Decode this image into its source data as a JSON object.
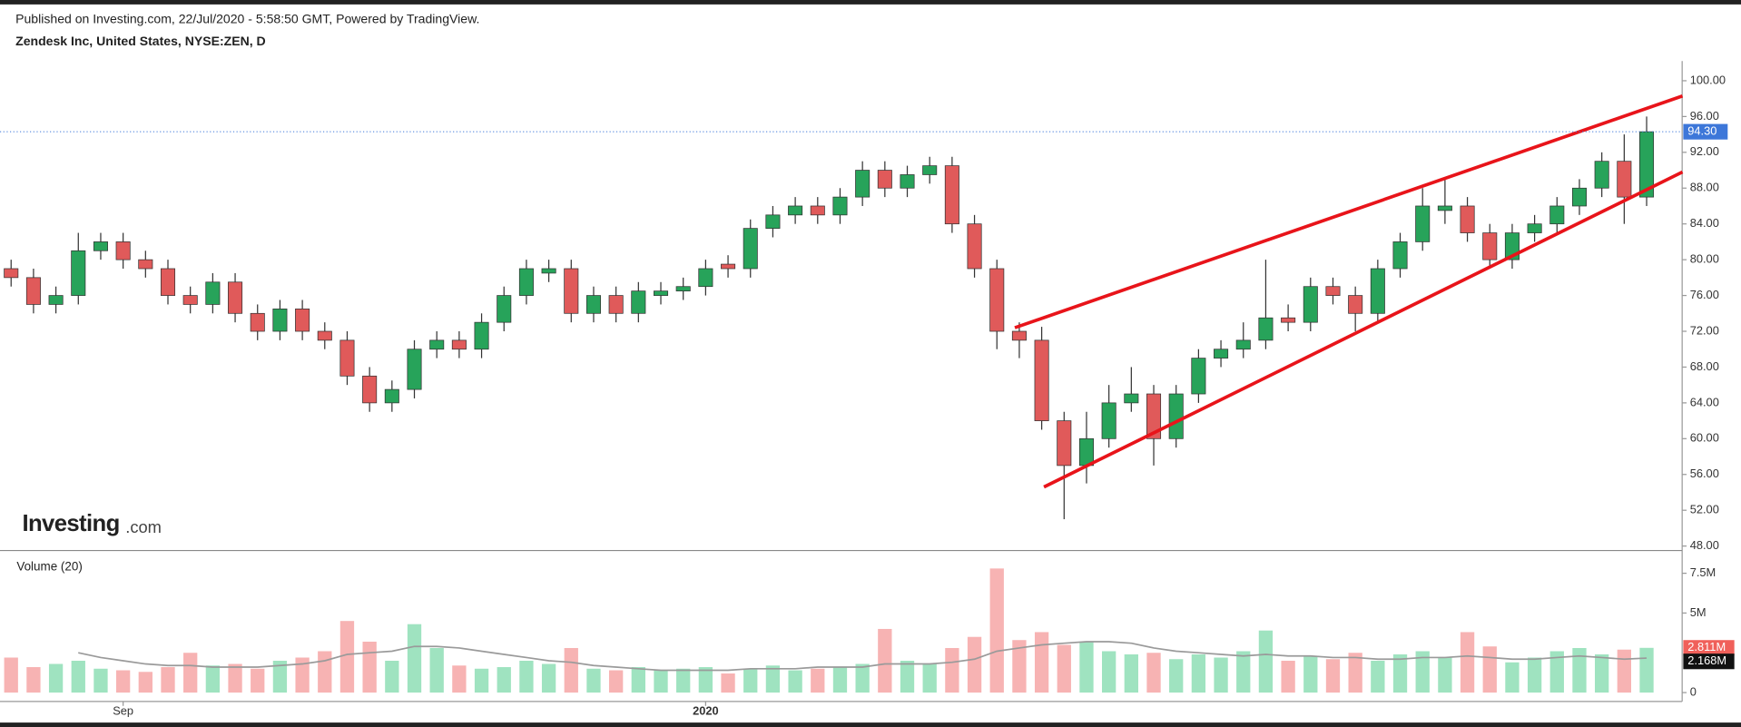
{
  "chart_data": {
    "type": "candlestick",
    "subtitle": "Published on Investing.com, 22/Jul/2020 - 5:58:50 GMT, Powered by TradingView.",
    "title": "Zendesk Inc, United States, NYSE:ZEN, D",
    "watermark": [
      "Investing",
      ".com"
    ],
    "categories": [
      null,
      null,
      null,
      null,
      null,
      "Sep",
      null,
      null,
      null,
      null,
      null,
      null,
      null,
      null,
      null,
      null,
      null,
      null,
      null,
      null,
      null,
      null,
      null,
      null,
      null,
      null,
      null,
      null,
      null,
      null,
      null,
      "2020",
      null,
      null,
      null,
      null,
      null,
      null,
      null,
      null,
      null,
      null,
      null,
      null,
      null,
      null,
      null,
      null,
      null,
      null,
      null,
      null,
      null,
      null,
      null,
      null,
      null,
      null,
      null,
      null,
      null,
      null,
      null,
      null,
      null,
      null,
      null,
      null,
      null,
      null,
      null,
      null,
      null,
      null
    ],
    "open": [
      79,
      78,
      75,
      76,
      81,
      82,
      80,
      79,
      76,
      75,
      77.5,
      74,
      72,
      74.5,
      72,
      71,
      67,
      64,
      65.5,
      70,
      71,
      70,
      73,
      76,
      78.5,
      79,
      74,
      76,
      74,
      76,
      76.5,
      77,
      79.5,
      79,
      83.5,
      85,
      86,
      85,
      87,
      90,
      88,
      89.5,
      90.5,
      84,
      79,
      72,
      71,
      62,
      57,
      60,
      64,
      65,
      60,
      65,
      69,
      70,
      71,
      73.5,
      73,
      77,
      76,
      74,
      79,
      82,
      85.5,
      86,
      83,
      80,
      83,
      84,
      86,
      88,
      91,
      87
    ],
    "high": [
      80,
      79,
      77,
      83,
      83,
      83,
      81,
      80,
      77,
      78.5,
      78.5,
      75,
      75.5,
      75.5,
      73,
      72,
      68,
      66.5,
      71,
      72,
      72,
      74,
      77,
      80,
      80,
      80,
      77,
      77,
      77.5,
      77.5,
      78,
      80,
      80.5,
      84.5,
      86,
      87,
      87,
      88,
      91,
      91,
      90.5,
      91.5,
      91.5,
      85,
      80,
      73,
      72.5,
      63,
      63,
      66,
      68,
      66,
      66,
      70,
      71,
      73,
      80,
      75,
      78,
      78,
      77,
      80,
      83,
      88,
      89,
      87,
      84,
      84,
      85,
      87,
      89,
      92,
      94,
      96
    ],
    "low": [
      77,
      74,
      74,
      75,
      80,
      79,
      78,
      75,
      74,
      74,
      73,
      71,
      71,
      71,
      70,
      66,
      63,
      63,
      64.5,
      69,
      69,
      69,
      72,
      75,
      77.5,
      73,
      73,
      73,
      73,
      75,
      75.5,
      76,
      78,
      78,
      82.5,
      84,
      84,
      84,
      86,
      87,
      87,
      88.5,
      83,
      78,
      70,
      69,
      61,
      51,
      55,
      59,
      63,
      57,
      59,
      64,
      68,
      69,
      70,
      72,
      72,
      75,
      72,
      73,
      78,
      81,
      84,
      82,
      79,
      79,
      82,
      83,
      85,
      87,
      84,
      86
    ],
    "close": [
      78,
      75,
      76,
      81,
      82,
      80,
      79,
      76,
      75,
      77.5,
      74,
      72,
      74.5,
      72,
      71,
      67,
      64,
      65.5,
      70,
      71,
      70,
      73,
      76,
      79,
      79,
      74,
      76,
      74,
      76.5,
      76.5,
      77,
      79,
      79,
      83.5,
      85,
      86,
      85,
      87,
      90,
      88,
      89.5,
      90.5,
      84,
      79,
      72,
      71,
      62,
      57,
      60,
      64,
      65,
      60,
      65,
      69,
      70,
      71,
      73.5,
      73,
      77,
      76,
      74,
      79,
      82,
      86,
      86,
      83,
      80,
      83,
      84,
      86,
      88,
      91,
      87,
      94.3
    ],
    "last_close_label": "94.30",
    "up_color": "#27a35a",
    "down_color": "#e05a5a",
    "last_price_color": "#3d77d9",
    "ylim": [
      47.5,
      102.2
    ],
    "yticks": [
      {
        "value": 48,
        "label": "48.00"
      },
      {
        "value": 52,
        "label": "52.00"
      },
      {
        "value": 56,
        "label": "56.00"
      },
      {
        "value": 60,
        "label": "60.00"
      },
      {
        "value": 64,
        "label": "64.00"
      },
      {
        "value": 68,
        "label": "68.00"
      },
      {
        "value": 72,
        "label": "72.00"
      },
      {
        "value": 76,
        "label": "76.00"
      },
      {
        "value": 80,
        "label": "80.00"
      },
      {
        "value": 84,
        "label": "84.00"
      },
      {
        "value": 88,
        "label": "88.00"
      },
      {
        "value": 92,
        "label": "92.00"
      },
      {
        "value": 96,
        "label": "96.00"
      },
      {
        "value": 100,
        "label": "100.00"
      }
    ],
    "trendlines": [
      {
        "color": "#e8141a",
        "x": [
          44.8,
          74.6
        ],
        "y": [
          72.4,
          98.3
        ]
      },
      {
        "color": "#e8141a",
        "x": [
          46.1,
          74.6
        ],
        "y": [
          54.6,
          89.8
        ]
      }
    ],
    "volume": {
      "label": "Volume (20)",
      "values": [
        2.2,
        1.6,
        1.8,
        2.0,
        1.5,
        1.4,
        1.3,
        1.6,
        2.5,
        1.7,
        1.8,
        1.5,
        2.0,
        2.2,
        2.6,
        4.5,
        3.2,
        2.0,
        4.3,
        2.8,
        1.7,
        1.5,
        1.6,
        2.0,
        1.8,
        2.8,
        1.5,
        1.4,
        1.6,
        1.4,
        1.5,
        1.6,
        1.2,
        1.5,
        1.7,
        1.4,
        1.5,
        1.6,
        1.8,
        4.0,
        2.0,
        1.8,
        2.8,
        3.5,
        7.8,
        3.3,
        3.8,
        3.0,
        3.2,
        2.6,
        2.4,
        2.5,
        2.1,
        2.4,
        2.2,
        2.6,
        3.9,
        2.0,
        2.3,
        2.1,
        2.5,
        2.0,
        2.4,
        2.6,
        2.2,
        3.8,
        2.9,
        1.9,
        2.2,
        2.6,
        2.8,
        2.4,
        2.7,
        2.811
      ],
      "last_value_label": "2.811M",
      "ma": [
        null,
        null,
        null,
        2.5,
        2.2,
        2.0,
        1.8,
        1.7,
        1.7,
        1.6,
        1.6,
        1.6,
        1.7,
        1.8,
        2.0,
        2.4,
        2.5,
        2.6,
        2.9,
        2.9,
        2.8,
        2.6,
        2.4,
        2.2,
        2.0,
        1.9,
        1.7,
        1.6,
        1.5,
        1.4,
        1.4,
        1.4,
        1.4,
        1.5,
        1.5,
        1.5,
        1.6,
        1.6,
        1.6,
        1.8,
        1.8,
        1.8,
        1.9,
        2.1,
        2.6,
        2.8,
        3.0,
        3.1,
        3.2,
        3.2,
        3.1,
        2.8,
        2.6,
        2.5,
        2.4,
        2.3,
        2.4,
        2.3,
        2.3,
        2.2,
        2.2,
        2.1,
        2.1,
        2.2,
        2.2,
        2.3,
        2.2,
        2.1,
        2.1,
        2.2,
        2.3,
        2.2,
        2.1,
        2.168
      ],
      "last_ma_label": "2.168M",
      "ma_color": "#9a9a9a",
      "up_color": "#9fe3c0",
      "down_color": "#f7b3b3",
      "ylim": [
        -0.42,
        8.65
      ],
      "yticks": [
        0,
        {
          "value": 5,
          "label": "5M"
        },
        {
          "value": 7.5,
          "label": "7.5M"
        }
      ]
    }
  }
}
